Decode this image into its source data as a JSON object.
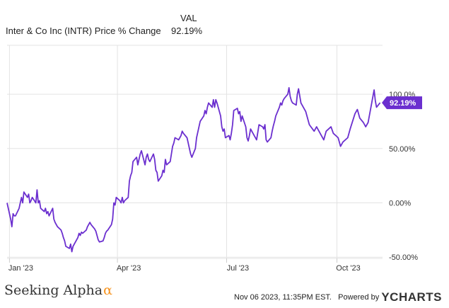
{
  "legend": {
    "column_header": "VAL",
    "series_name": "Inter & Co Inc (INTR) Price % Change",
    "series_value": "92.19%"
  },
  "footer": {
    "brand": "Seeking Alpha",
    "brand_symbol": "α",
    "timestamp": "Nov 06 2023, 11:35PM EST.",
    "powered_by": "Powered by",
    "provider": "YCHARTS"
  },
  "colors": {
    "line": "#6b2fcf",
    "label_bg": "#6b2fcf",
    "grid": "#e3e3e3",
    "axis_text": "#333333"
  },
  "chart_data": {
    "type": "line",
    "title": "",
    "xlabel": "",
    "ylabel": "",
    "x_ticks": [
      "Jan '23",
      "Apr '23",
      "Jul '23",
      "Oct '23"
    ],
    "y_ticks": [
      "100.0%",
      "50.00%",
      "0.00%",
      "-50.00%"
    ],
    "y_tick_values": [
      100,
      50,
      0,
      -50
    ],
    "ylim": [
      -50,
      100
    ],
    "grid": true,
    "end_label": "92.19%",
    "series": [
      {
        "name": "Inter & Co Inc (INTR) Price % Change",
        "points": [
          [
            "2022-12-30",
            0
          ],
          [
            "2023-01-02",
            -15
          ],
          [
            "2023-01-03",
            -22
          ],
          [
            "2023-01-04",
            -10
          ],
          [
            "2023-01-05",
            -12
          ],
          [
            "2023-01-06",
            -12
          ],
          [
            "2023-01-09",
            -5
          ],
          [
            "2023-01-10",
            0
          ],
          [
            "2023-01-11",
            5
          ],
          [
            "2023-01-12",
            0
          ],
          [
            "2023-01-13",
            10
          ],
          [
            "2023-01-16",
            5
          ],
          [
            "2023-01-17",
            8
          ],
          [
            "2023-01-18",
            0
          ],
          [
            "2023-01-19",
            2
          ],
          [
            "2023-01-20",
            5
          ],
          [
            "2023-01-23",
            0
          ],
          [
            "2023-01-24",
            12
          ],
          [
            "2023-01-25",
            0
          ],
          [
            "2023-01-26",
            2
          ],
          [
            "2023-01-27",
            -5
          ],
          [
            "2023-01-30",
            -8
          ],
          [
            "2023-01-31",
            -5
          ],
          [
            "2023-02-01",
            -10
          ],
          [
            "2023-02-02",
            -8
          ],
          [
            "2023-02-03",
            -12
          ],
          [
            "2023-02-06",
            -5
          ],
          [
            "2023-02-07",
            -15
          ],
          [
            "2023-02-08",
            -18
          ],
          [
            "2023-02-09",
            -20
          ],
          [
            "2023-02-10",
            -22
          ],
          [
            "2023-02-13",
            -25
          ],
          [
            "2023-02-14",
            -28
          ],
          [
            "2023-02-15",
            -32
          ],
          [
            "2023-02-16",
            -35
          ],
          [
            "2023-02-17",
            -40
          ],
          [
            "2023-02-20",
            -42
          ],
          [
            "2023-02-21",
            -38
          ],
          [
            "2023-02-22",
            -45
          ],
          [
            "2023-02-23",
            -40
          ],
          [
            "2023-02-24",
            -38
          ],
          [
            "2023-02-27",
            -32
          ],
          [
            "2023-02-28",
            -28
          ],
          [
            "2023-03-01",
            -30
          ],
          [
            "2023-03-02",
            -27
          ],
          [
            "2023-03-03",
            -28
          ],
          [
            "2023-03-06",
            -25
          ],
          [
            "2023-03-07",
            -22
          ],
          [
            "2023-03-08",
            -20
          ],
          [
            "2023-03-09",
            -18
          ],
          [
            "2023-03-10",
            -20
          ],
          [
            "2023-03-13",
            -24
          ],
          [
            "2023-03-14",
            -26
          ],
          [
            "2023-03-15",
            -30
          ],
          [
            "2023-03-16",
            -34
          ],
          [
            "2023-03-17",
            -36
          ],
          [
            "2023-03-20",
            -35
          ],
          [
            "2023-03-21",
            -32
          ],
          [
            "2023-03-22",
            -28
          ],
          [
            "2023-03-23",
            -26
          ],
          [
            "2023-03-24",
            -25
          ],
          [
            "2023-03-27",
            -20
          ],
          [
            "2023-03-28",
            -15
          ],
          [
            "2023-03-29",
            0
          ],
          [
            "2023-03-30",
            -2
          ],
          [
            "2023-03-31",
            5
          ],
          [
            "2023-04-03",
            2
          ],
          [
            "2023-04-04",
            0
          ],
          [
            "2023-04-05",
            5
          ],
          [
            "2023-04-06",
            0
          ],
          [
            "2023-04-07",
            2
          ],
          [
            "2023-04-10",
            5
          ],
          [
            "2023-04-11",
            20
          ],
          [
            "2023-04-12",
            25
          ],
          [
            "2023-04-13",
            28
          ],
          [
            "2023-04-14",
            38
          ],
          [
            "2023-04-17",
            42
          ],
          [
            "2023-04-18",
            35
          ],
          [
            "2023-04-19",
            40
          ],
          [
            "2023-04-20",
            45
          ],
          [
            "2023-04-21",
            48
          ],
          [
            "2023-04-24",
            35
          ],
          [
            "2023-04-25",
            42
          ],
          [
            "2023-04-26",
            45
          ],
          [
            "2023-04-27",
            40
          ],
          [
            "2023-04-28",
            38
          ],
          [
            "2023-05-01",
            45
          ],
          [
            "2023-05-02",
            40
          ],
          [
            "2023-05-03",
            30
          ],
          [
            "2023-05-04",
            28
          ],
          [
            "2023-05-05",
            20
          ],
          [
            "2023-05-08",
            25
          ],
          [
            "2023-05-09",
            30
          ],
          [
            "2023-05-10",
            28
          ],
          [
            "2023-05-11",
            40
          ],
          [
            "2023-05-12",
            35
          ],
          [
            "2023-05-15",
            38
          ],
          [
            "2023-05-16",
            45
          ],
          [
            "2023-05-17",
            52
          ],
          [
            "2023-05-18",
            55
          ],
          [
            "2023-05-19",
            60
          ],
          [
            "2023-05-22",
            58
          ],
          [
            "2023-05-23",
            60
          ],
          [
            "2023-05-24",
            62
          ],
          [
            "2023-05-25",
            66
          ],
          [
            "2023-05-26",
            64
          ],
          [
            "2023-05-29",
            60
          ],
          [
            "2023-05-30",
            55
          ],
          [
            "2023-05-31",
            50
          ],
          [
            "2023-06-01",
            45
          ],
          [
            "2023-06-02",
            42
          ],
          [
            "2023-06-05",
            50
          ],
          [
            "2023-06-06",
            60
          ],
          [
            "2023-06-07",
            65
          ],
          [
            "2023-06-08",
            70
          ],
          [
            "2023-06-09",
            75
          ],
          [
            "2023-06-12",
            80
          ],
          [
            "2023-06-13",
            85
          ],
          [
            "2023-06-14",
            82
          ],
          [
            "2023-06-15",
            88
          ],
          [
            "2023-06-16",
            92
          ],
          [
            "2023-06-19",
            88
          ],
          [
            "2023-06-20",
            95
          ],
          [
            "2023-06-21",
            88
          ],
          [
            "2023-06-22",
            95
          ],
          [
            "2023-06-23",
            92
          ],
          [
            "2023-06-26",
            80
          ],
          [
            "2023-06-27",
            70
          ],
          [
            "2023-06-28",
            66
          ],
          [
            "2023-06-29",
            68
          ],
          [
            "2023-06-30",
            60
          ],
          [
            "2023-07-03",
            62
          ],
          [
            "2023-07-04",
            58
          ],
          [
            "2023-07-05",
            64
          ],
          [
            "2023-07-06",
            72
          ],
          [
            "2023-07-07",
            85
          ],
          [
            "2023-07-10",
            87
          ],
          [
            "2023-07-11",
            82
          ],
          [
            "2023-07-12",
            84
          ],
          [
            "2023-07-13",
            75
          ],
          [
            "2023-07-14",
            80
          ],
          [
            "2023-07-17",
            70
          ],
          [
            "2023-07-18",
            60
          ],
          [
            "2023-07-19",
            57
          ],
          [
            "2023-07-20",
            62
          ],
          [
            "2023-07-21",
            68
          ],
          [
            "2023-07-24",
            62
          ],
          [
            "2023-07-25",
            60
          ],
          [
            "2023-07-26",
            58
          ],
          [
            "2023-07-27",
            65
          ],
          [
            "2023-07-28",
            72
          ],
          [
            "2023-07-31",
            70
          ],
          [
            "2023-08-01",
            68
          ],
          [
            "2023-08-02",
            72
          ],
          [
            "2023-08-03",
            58
          ],
          [
            "2023-08-04",
            56
          ],
          [
            "2023-08-07",
            60
          ],
          [
            "2023-08-08",
            66
          ],
          [
            "2023-08-09",
            71
          ],
          [
            "2023-08-10",
            75
          ],
          [
            "2023-08-11",
            80
          ],
          [
            "2023-08-14",
            88
          ],
          [
            "2023-08-15",
            92
          ],
          [
            "2023-08-16",
            90
          ],
          [
            "2023-08-17",
            94
          ],
          [
            "2023-08-18",
            96
          ],
          [
            "2023-08-21",
            100
          ],
          [
            "2023-08-22",
            106
          ],
          [
            "2023-08-23",
            98
          ],
          [
            "2023-08-24",
            94
          ],
          [
            "2023-08-25",
            92
          ],
          [
            "2023-08-28",
            90
          ],
          [
            "2023-08-29",
            100
          ],
          [
            "2023-08-30",
            105
          ]
        ]
      }
    ],
    "xlim": [
      "2022-12-30",
      "2023-11-06"
    ]
  }
}
